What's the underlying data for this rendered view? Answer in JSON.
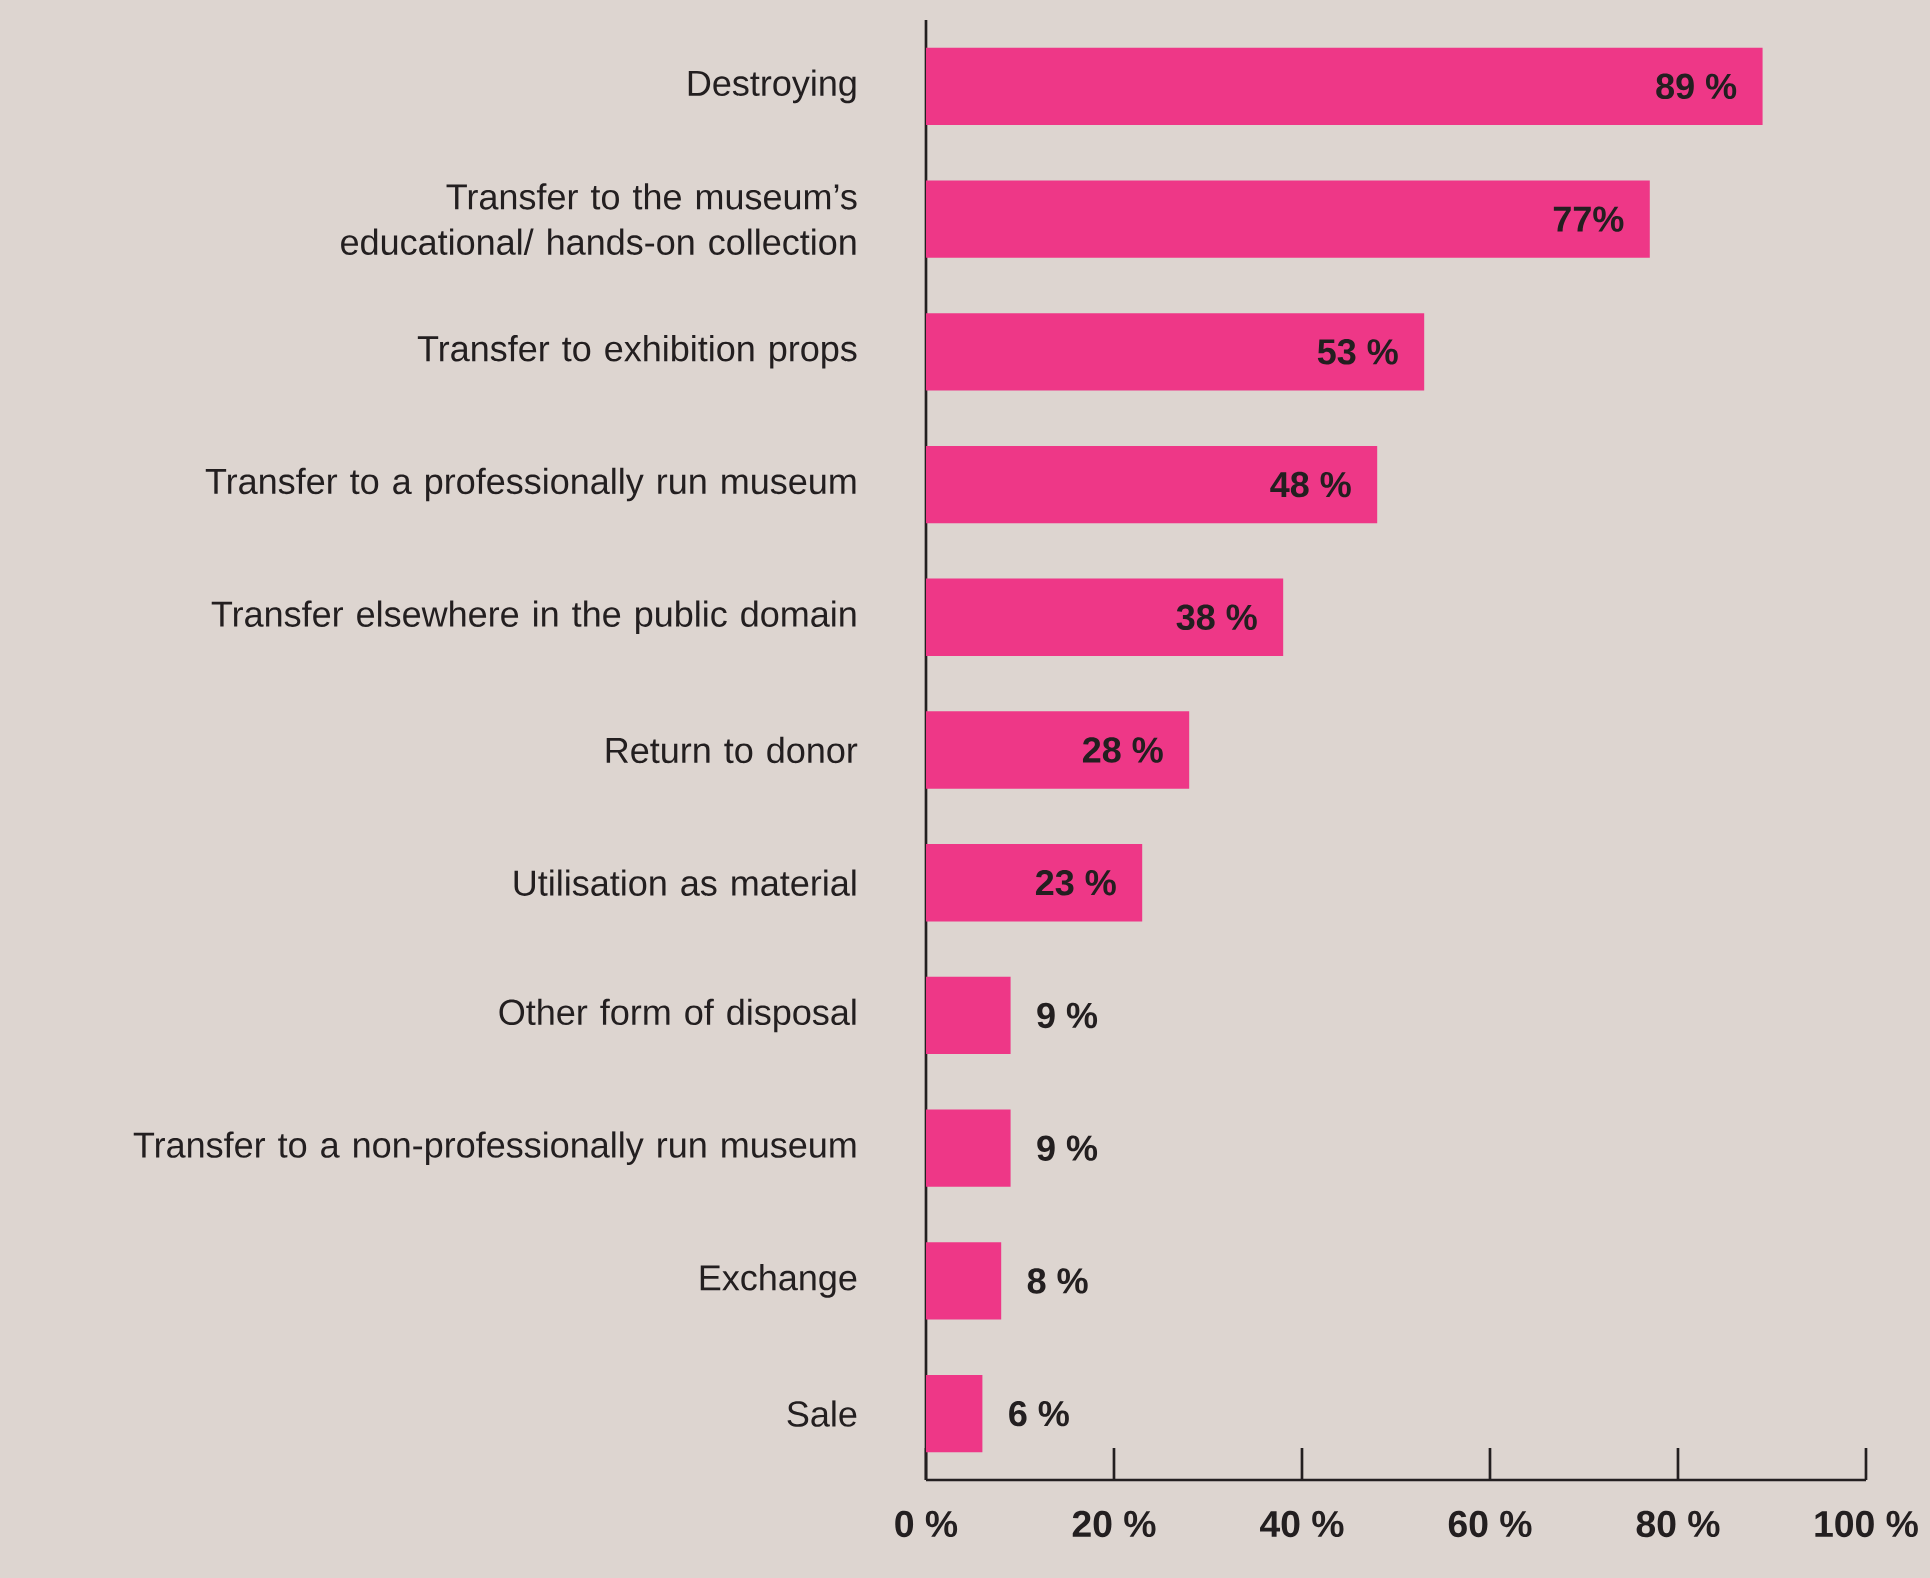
{
  "chart_data": {
    "type": "bar",
    "orientation": "horizontal",
    "categories": [
      "Destroying",
      "Transfer to the museum’s educational/ hands-on collection",
      "Transfer to exhibition props",
      "Transfer to a professionally run museum",
      "Transfer elsewhere in the public domain",
      "Return to donor",
      "Utilisation as material",
      "Other form of disposal",
      "Transfer to a non-professionally run museum",
      "Exchange",
      "Sale"
    ],
    "values": [
      89,
      77,
      53,
      48,
      38,
      28,
      23,
      9,
      9,
      8,
      6
    ],
    "value_labels": [
      "89 %",
      "77%",
      "53 %",
      "48 %",
      "38 %",
      "28 %",
      "23 %",
      "9 %",
      "9 %",
      "8 %",
      "6 %"
    ],
    "color": "#ee3787",
    "xlim": [
      0,
      100
    ],
    "xticks": [
      {
        "value": 0,
        "label": "0 %"
      },
      {
        "value": 20,
        "label": "20 %"
      },
      {
        "value": 40,
        "label": "40 %"
      },
      {
        "value": 60,
        "label": "60 %"
      },
      {
        "value": 80,
        "label": "80 %"
      },
      {
        "value": 100,
        "label": "100 %"
      }
    ],
    "grid": false
  }
}
